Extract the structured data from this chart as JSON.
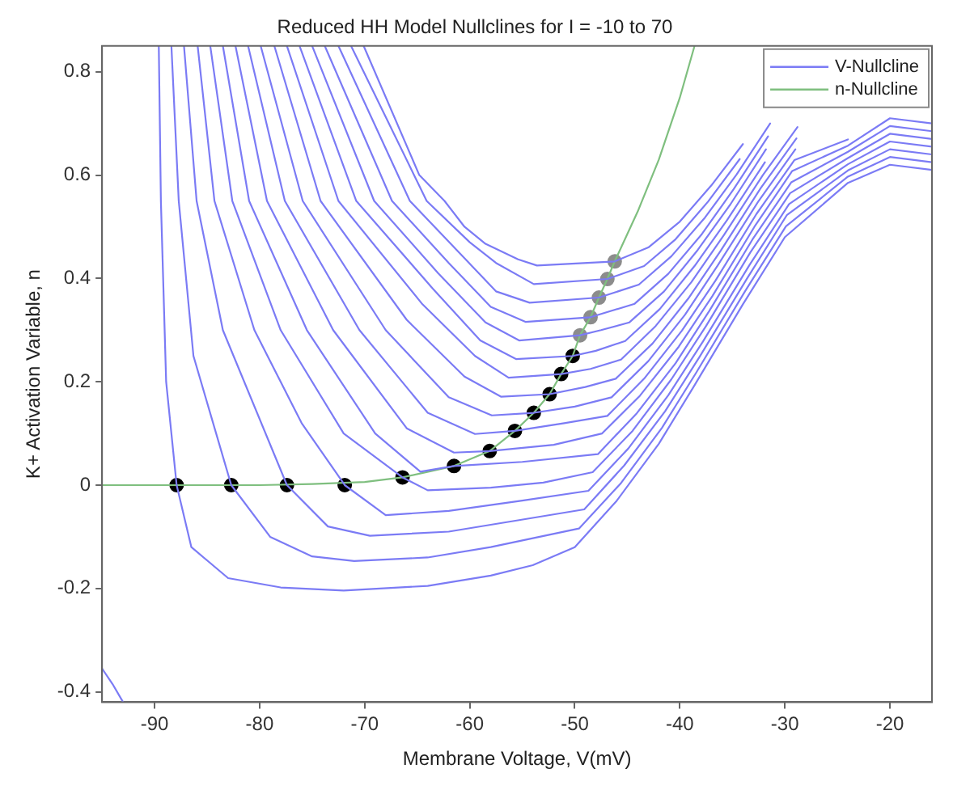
{
  "chart_data": {
    "type": "line",
    "title": "Reduced HH Model Nullclines for I = -10 to 70",
    "xlabel": "Membrane Voltage, V(mV)",
    "ylabel": "K+ Activation Variable, n",
    "xlim": [
      -95,
      -16
    ],
    "ylim": [
      -0.42,
      0.85
    ],
    "xticks": [
      -90,
      -80,
      -70,
      -60,
      -50,
      -40,
      -30,
      -20
    ],
    "yticks": [
      -0.4,
      -0.2,
      0,
      0.2,
      0.4,
      0.6,
      0.8
    ],
    "grid": false,
    "legend": "top right",
    "series": [
      {
        "name": "V-Nullcline",
        "color": "#7b7bf5",
        "x": [
          -95,
          -94,
          -93,
          -92,
          -89.6,
          -89.4,
          -88.9,
          -87.9,
          -86.5,
          -83,
          -78,
          -72,
          -64,
          -58,
          -54,
          -50,
          -46,
          -42,
          -38.7,
          -34,
          -30,
          -24,
          -20,
          -16
        ],
        "values": [
          -0.355,
          -0.385,
          -0.42,
          null,
          0.85,
          0.55,
          0.2,
          0,
          -0.12,
          -0.18,
          -0.198,
          -0.204,
          -0.195,
          -0.175,
          -0.155,
          -0.12,
          -0.03,
          0.08,
          0.19,
          0.35,
          0.48,
          0.585,
          0.62,
          0.61
        ]
      },
      {
        "color": "#7b7bf5",
        "x": [
          -88.4,
          -87.7,
          -86.3,
          -82.7,
          -79,
          -75,
          -71,
          -64,
          -58,
          -49.6,
          -45.6,
          -41.7,
          -38.4,
          -33.8,
          -29.9,
          -24,
          -20,
          -16
        ],
        "values": [
          0.85,
          0.55,
          0.25,
          0,
          -0.1,
          -0.138,
          -0.147,
          -0.14,
          -0.12,
          -0.084,
          0.004,
          0.111,
          0.219,
          0.375,
          0.501,
          0.597,
          0.635,
          0.625
        ]
      },
      {
        "color": "#7b7bf5",
        "x": [
          -87.2,
          -86,
          -83.5,
          -77.4,
          -73.5,
          -69.5,
          -62,
          -56,
          -49.1,
          -45.3,
          -41.4,
          -38.1,
          -33.6,
          -29.8,
          -24,
          -20,
          -16
        ],
        "values": [
          0.85,
          0.55,
          0.3,
          0,
          -0.08,
          -0.098,
          -0.09,
          -0.07,
          -0.047,
          0.038,
          0.143,
          0.249,
          0.4,
          0.523,
          0.609,
          0.65,
          0.64
        ]
      },
      {
        "color": "#7b7bf5",
        "x": [
          -85.9,
          -84.3,
          -80.5,
          -76,
          -71.9,
          -68,
          -62,
          -55,
          -48.7,
          -44.9,
          -41.1,
          -37.8,
          -33.4,
          -29.6,
          -24,
          -20,
          -16
        ],
        "values": [
          0.85,
          0.55,
          0.3,
          0.12,
          0,
          -0.058,
          -0.05,
          -0.03,
          -0.011,
          0.071,
          0.174,
          0.278,
          0.425,
          0.544,
          0.621,
          0.665,
          0.655
        ]
      },
      {
        "color": "#7b7bf5",
        "x": [
          -84.7,
          -82.6,
          -78,
          -72,
          -66.4,
          -64,
          -58,
          -53,
          -48.3,
          -44.5,
          -40.8,
          -37.5,
          -33.3,
          -29.5,
          -24,
          -20,
          -16
        ],
        "values": [
          0.85,
          0.55,
          0.3,
          0.1,
          0.015,
          -0.01,
          -0.005,
          0.005,
          0.025,
          0.105,
          0.205,
          0.308,
          0.45,
          0.565,
          0.633,
          0.68,
          0.67
        ]
      },
      {
        "color": "#7b7bf5",
        "x": [
          -83.5,
          -81,
          -75.5,
          -69,
          -64.7,
          -61.5,
          -55,
          -47.8,
          -44.1,
          -40.4,
          -37.2,
          -33.1,
          -29.4,
          -24,
          -20,
          -16
        ],
        "values": [
          0.85,
          0.55,
          0.3,
          0.1,
          0.026,
          0.037,
          0.045,
          0.06,
          0.139,
          0.236,
          0.337,
          0.475,
          0.586,
          0.645,
          0.695,
          0.685
        ]
      },
      {
        "color": "#7b7bf5",
        "x": [
          -82.3,
          -79.3,
          -73,
          -66,
          -61.5,
          -58.1,
          -52,
          -47.4,
          -43.8,
          -40.1,
          -36.9,
          -32.9,
          -29.3,
          -24,
          -20,
          -16
        ],
        "values": [
          0.85,
          0.55,
          0.3,
          0.11,
          0.063,
          0.066,
          0.078,
          0.1,
          0.173,
          0.268,
          0.366,
          0.5,
          0.608,
          0.657,
          0.71,
          0.7
        ]
      },
      {
        "color": "#7b7bf5",
        "x": [
          -81.1,
          -77.6,
          -70.5,
          -64,
          -59.5,
          -55.7,
          -51,
          -46.9,
          -43.4,
          -39.8,
          -36.6,
          -32.7,
          -29.1,
          -24
        ],
        "values": [
          0.85,
          0.55,
          0.3,
          0.14,
          0.099,
          0.105,
          0.12,
          0.134,
          0.206,
          0.299,
          0.396,
          0.525,
          0.629,
          0.669
        ]
      },
      {
        "color": "#7b7bf5",
        "x": [
          -79.9,
          -75.9,
          -68,
          -62,
          -57.9,
          -53.9,
          -50,
          -46.5,
          -43,
          -39.5,
          -36.4,
          -32.5,
          -29
        ],
        "values": [
          0.85,
          0.55,
          0.3,
          0.17,
          0.135,
          0.14,
          0.152,
          0.17,
          0.24,
          0.33,
          0.425,
          0.55,
          0.65
        ]
      },
      {
        "color": "#7b7bf5",
        "x": [
          -78.6,
          -74.2,
          -66,
          -60.5,
          -57,
          -52.4,
          -49,
          -46.1,
          -42.6,
          -39.2,
          -36.1,
          -32.3,
          -28.9
        ],
        "values": [
          0.85,
          0.55,
          0.32,
          0.21,
          0.171,
          0.176,
          0.19,
          0.206,
          0.274,
          0.361,
          0.454,
          0.575,
          0.671
        ]
      },
      {
        "color": "#7b7bf5",
        "x": [
          -77.4,
          -72.5,
          -64.5,
          -59.5,
          -56.3,
          -51.3,
          -48.5,
          -45.6,
          -42.3,
          -38.9,
          -35.8,
          -32.1,
          -28.8
        ],
        "values": [
          0.85,
          0.55,
          0.35,
          0.25,
          0.208,
          0.215,
          0.225,
          0.243,
          0.308,
          0.393,
          0.484,
          0.6,
          0.693
        ]
      },
      {
        "color": "#7b7bf5",
        "x": [
          -76.2,
          -70.8,
          -63.5,
          -59,
          -55.6,
          -50.2,
          -48,
          -45.2,
          -41.9,
          -38.6,
          -35.5,
          -31.9
        ],
        "values": [
          0.85,
          0.55,
          0.38,
          0.28,
          0.244,
          0.25,
          0.26,
          0.279,
          0.341,
          0.424,
          0.513,
          0.625
        ]
      },
      {
        "color": "#7b7bf5",
        "x": [
          -75,
          -69.1,
          -63,
          -58.5,
          -55.3,
          -49.5,
          -47.5,
          -44.8,
          -41.5,
          -38.3,
          -35.2,
          -31.8
        ],
        "values": [
          0.85,
          0.55,
          0.41,
          0.315,
          0.28,
          0.29,
          0.3,
          0.315,
          0.375,
          0.455,
          0.543,
          0.65
        ]
      },
      {
        "color": "#7b7bf5",
        "x": [
          -73.8,
          -67.4,
          -62,
          -58,
          -54.7,
          -48.5,
          -44.3,
          -41.1,
          -37.9,
          -34.9,
          -31.6
        ],
        "values": [
          0.85,
          0.55,
          0.43,
          0.345,
          0.316,
          0.325,
          0.351,
          0.409,
          0.486,
          0.572,
          0.675
        ]
      },
      {
        "color": "#7b7bf5",
        "x": [
          -72.5,
          -65.7,
          -61,
          -57.5,
          -54.3,
          -47.7,
          -43.9,
          -40.8,
          -37.6,
          -34.6,
          -31.4
        ],
        "values": [
          0.85,
          0.55,
          0.45,
          0.375,
          0.353,
          0.363,
          0.388,
          0.443,
          0.518,
          0.601,
          0.7
        ]
      },
      {
        "color": "#7b7bf5",
        "x": [
          -71.3,
          -64.1,
          -60,
          -57.5,
          -53.9,
          -46.9,
          -43.4,
          -40.4,
          -37.3,
          -34.3
        ],
        "values": [
          0.85,
          0.55,
          0.47,
          0.43,
          0.389,
          0.399,
          0.424,
          0.476,
          0.549,
          0.631
        ]
      },
      {
        "color": "#7b7bf5",
        "x": [
          -70.1,
          -64.8,
          -62.4,
          -60.5,
          -58.5,
          -55.4,
          -53.6,
          -46.2,
          -43,
          -40,
          -37,
          -34
        ],
        "values": [
          0.85,
          0.6,
          0.55,
          0.5,
          0.467,
          0.437,
          0.425,
          0.433,
          0.46,
          0.51,
          0.58,
          0.66
        ]
      },
      {
        "name": "n-Nullcline",
        "color": "#7fbf7f",
        "x": [
          -95,
          -85,
          -80,
          -75,
          -70,
          -66.4,
          -61.5,
          -58.1,
          -55.7,
          -53.9,
          -52.4,
          -51.3,
          -50.2,
          -49.5,
          -48.5,
          -47.7,
          -46.9,
          -46.2,
          -44,
          -42,
          -40,
          -38.6
        ],
        "values": [
          0,
          0,
          0,
          0.002,
          0.006,
          0.015,
          0.037,
          0.066,
          0.105,
          0.14,
          0.176,
          0.215,
          0.25,
          0.29,
          0.325,
          0.363,
          0.399,
          0.433,
          0.53,
          0.63,
          0.75,
          0.85
        ]
      },
      {
        "type": "scatter",
        "marker": "circle",
        "color": "#000000",
        "x": [
          -87.9,
          -82.7,
          -77.4,
          -71.9,
          -66.4,
          -61.5,
          -58.1,
          -55.7,
          -53.9,
          -52.4,
          -51.3,
          -50.2
        ],
        "values": [
          0,
          0,
          0,
          0,
          0.015,
          0.037,
          0.066,
          0.105,
          0.14,
          0.176,
          0.215,
          0.25
        ]
      },
      {
        "type": "scatter",
        "marker": "circle",
        "color": "#8c8c8c",
        "x": [
          -49.5,
          -48.5,
          -47.7,
          -46.9,
          -46.2
        ],
        "values": [
          0.29,
          0.325,
          0.363,
          0.399,
          0.433
        ]
      }
    ]
  }
}
